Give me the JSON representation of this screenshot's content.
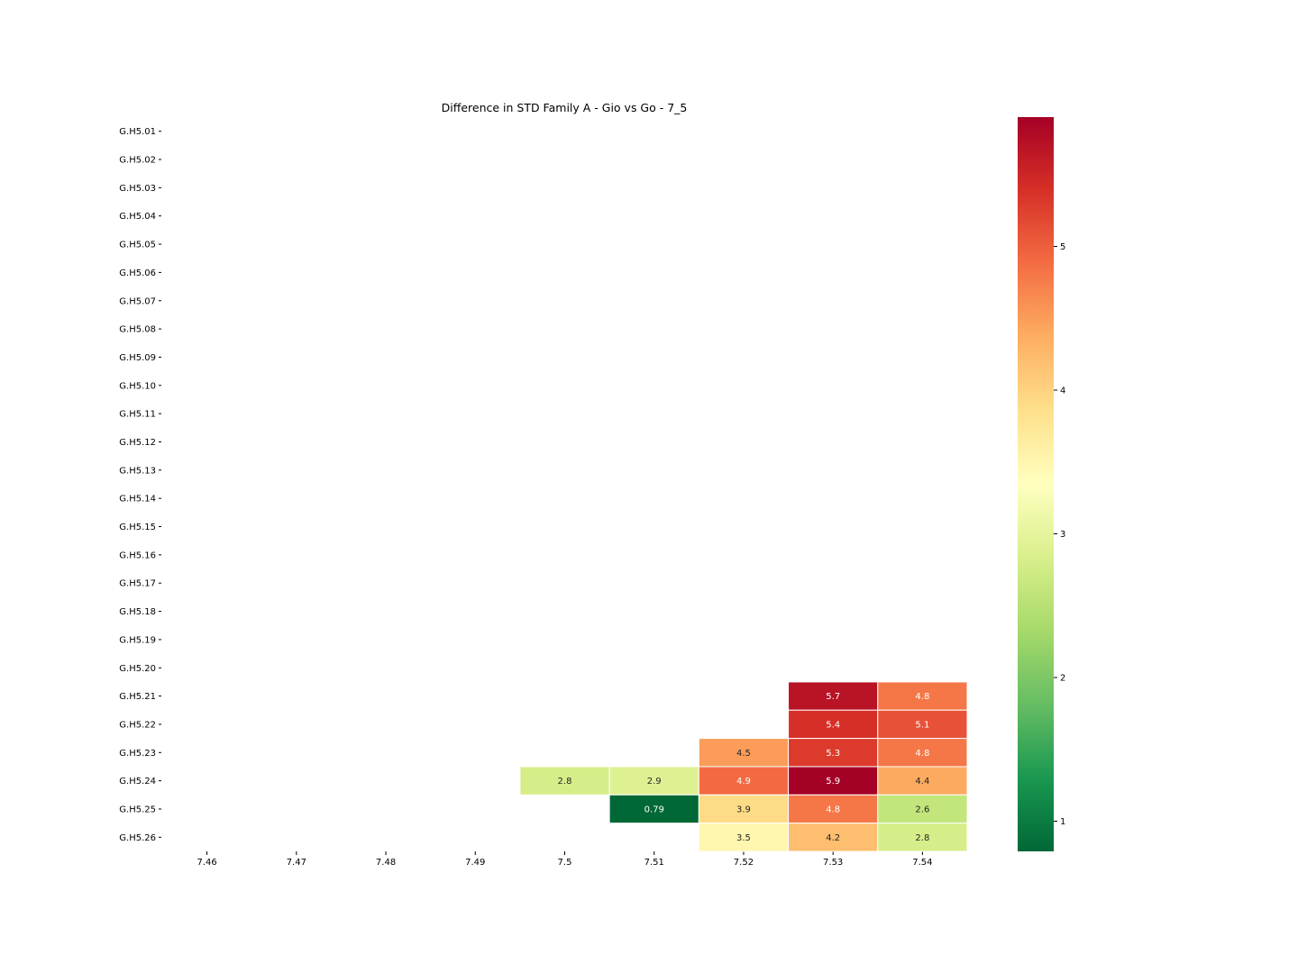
{
  "chart_data": {
    "type": "heatmap",
    "title": "Difference in STD Family A - Gio vs Go - 7_5",
    "xlabel": "",
    "ylabel": "",
    "x": [
      "7.46",
      "7.47",
      "7.48",
      "7.49",
      "7.5",
      "7.51",
      "7.52",
      "7.53",
      "7.54"
    ],
    "y": [
      "G.H5.01",
      "G.H5.02",
      "G.H5.03",
      "G.H5.04",
      "G.H5.05",
      "G.H5.06",
      "G.H5.07",
      "G.H5.08",
      "G.H5.09",
      "G.H5.10",
      "G.H5.11",
      "G.H5.12",
      "G.H5.13",
      "G.H5.14",
      "G.H5.15",
      "G.H5.16",
      "G.H5.17",
      "G.H5.18",
      "G.H5.19",
      "G.H5.20",
      "G.H5.21",
      "G.H5.22",
      "G.H5.23",
      "G.H5.24",
      "G.H5.25",
      "G.H5.26"
    ],
    "cells": [
      {
        "x": "7.53",
        "y": "G.H5.21",
        "value": 5.7,
        "label": "5.7"
      },
      {
        "x": "7.54",
        "y": "G.H5.21",
        "value": 4.8,
        "label": "4.8"
      },
      {
        "x": "7.53",
        "y": "G.H5.22",
        "value": 5.4,
        "label": "5.4"
      },
      {
        "x": "7.54",
        "y": "G.H5.22",
        "value": 5.1,
        "label": "5.1"
      },
      {
        "x": "7.52",
        "y": "G.H5.23",
        "value": 4.5,
        "label": "4.5"
      },
      {
        "x": "7.53",
        "y": "G.H5.23",
        "value": 5.3,
        "label": "5.3"
      },
      {
        "x": "7.54",
        "y": "G.H5.23",
        "value": 4.8,
        "label": "4.8"
      },
      {
        "x": "7.5",
        "y": "G.H5.24",
        "value": 2.8,
        "label": "2.8"
      },
      {
        "x": "7.51",
        "y": "G.H5.24",
        "value": 2.9,
        "label": "2.9"
      },
      {
        "x": "7.52",
        "y": "G.H5.24",
        "value": 4.9,
        "label": "4.9"
      },
      {
        "x": "7.53",
        "y": "G.H5.24",
        "value": 5.9,
        "label": "5.9"
      },
      {
        "x": "7.54",
        "y": "G.H5.24",
        "value": 4.4,
        "label": "4.4"
      },
      {
        "x": "7.51",
        "y": "G.H5.25",
        "value": 0.79,
        "label": "0.79"
      },
      {
        "x": "7.52",
        "y": "G.H5.25",
        "value": 3.9,
        "label": "3.9"
      },
      {
        "x": "7.53",
        "y": "G.H5.25",
        "value": 4.8,
        "label": "4.8"
      },
      {
        "x": "7.54",
        "y": "G.H5.25",
        "value": 2.6,
        "label": "2.6"
      },
      {
        "x": "7.52",
        "y": "G.H5.26",
        "value": 3.5,
        "label": "3.5"
      },
      {
        "x": "7.53",
        "y": "G.H5.26",
        "value": 4.2,
        "label": "4.2"
      },
      {
        "x": "7.54",
        "y": "G.H5.26",
        "value": 2.8,
        "label": "2.8"
      }
    ],
    "colorscale": "RdYlGn_r",
    "colorbar": {
      "min": 0.79,
      "max": 5.9,
      "ticks": [
        "1",
        "2",
        "3",
        "4",
        "5"
      ]
    },
    "grid": false,
    "legend": "right"
  }
}
